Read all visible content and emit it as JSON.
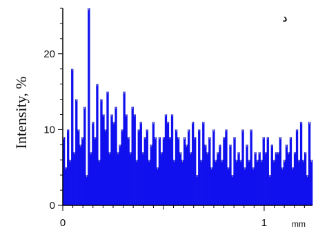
{
  "chart_data": {
    "type": "bar",
    "title": "",
    "panel_label": "د",
    "xlabel": "",
    "ylabel": "Intensity, %",
    "x_unit": "mm",
    "xlim": [
      0,
      1.24
    ],
    "ylim": [
      0,
      26
    ],
    "x_ticks": [
      0,
      1
    ],
    "x_tick_labels": [
      "0",
      "1"
    ],
    "y_ticks": [
      0,
      10,
      20
    ],
    "y_tick_labels": [
      "0",
      "10",
      "20"
    ],
    "grid": false,
    "legend": "none",
    "colors": {
      "bar": "#1010ee",
      "spike": "#a0a0b0",
      "axis": "#000000"
    },
    "series": [
      {
        "values": [
          9,
          5,
          10,
          6,
          18,
          7,
          14,
          10,
          8,
          9,
          13,
          4,
          26,
          7,
          11,
          9,
          16,
          6,
          14,
          12,
          10,
          15,
          7,
          12,
          11,
          13,
          7,
          8,
          10,
          15,
          12,
          9,
          7,
          13,
          12,
          6,
          10,
          11,
          7,
          9,
          10,
          6,
          8,
          11,
          9,
          5,
          9,
          7,
          9,
          12,
          11,
          9,
          12,
          6,
          10,
          9,
          7,
          6,
          9,
          8,
          10,
          7,
          11,
          9,
          4,
          10,
          6,
          11,
          8,
          7,
          9,
          5,
          10,
          6,
          7,
          8,
          6,
          9,
          10,
          5,
          8,
          4,
          9,
          6,
          7,
          6,
          10,
          5,
          8,
          6,
          10,
          5,
          7,
          6,
          7,
          6,
          9,
          7,
          9,
          4,
          8,
          6,
          7,
          7,
          9,
          5,
          6,
          8,
          7,
          9,
          5,
          7,
          10,
          6,
          11,
          6,
          7,
          4,
          11,
          6
        ]
      }
    ]
  }
}
